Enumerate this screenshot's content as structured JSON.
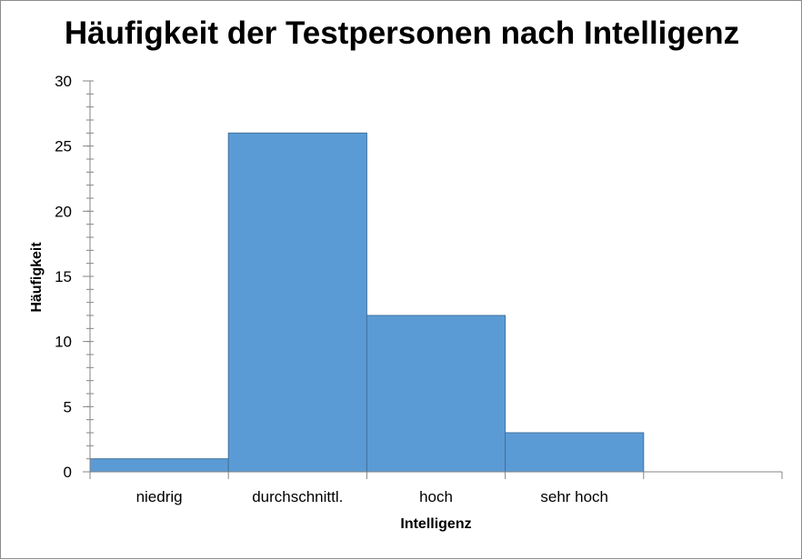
{
  "chart_data": {
    "type": "bar",
    "title": "Häufigkeit der Testpersonen nach Intelligenz",
    "xlabel": "Intelligenz",
    "ylabel": "Häufigkeit",
    "categories": [
      "niedrig",
      "durchschnittl.",
      "hoch",
      "sehr hoch",
      ""
    ],
    "values": [
      1,
      26,
      12,
      3,
      0
    ],
    "ylim": [
      0,
      30
    ],
    "yticks": [
      0,
      5,
      10,
      15,
      20,
      25,
      30
    ],
    "grid": false,
    "legend": "none",
    "bar_color": "#5b9bd5",
    "bar_border_color": "#41719c"
  }
}
